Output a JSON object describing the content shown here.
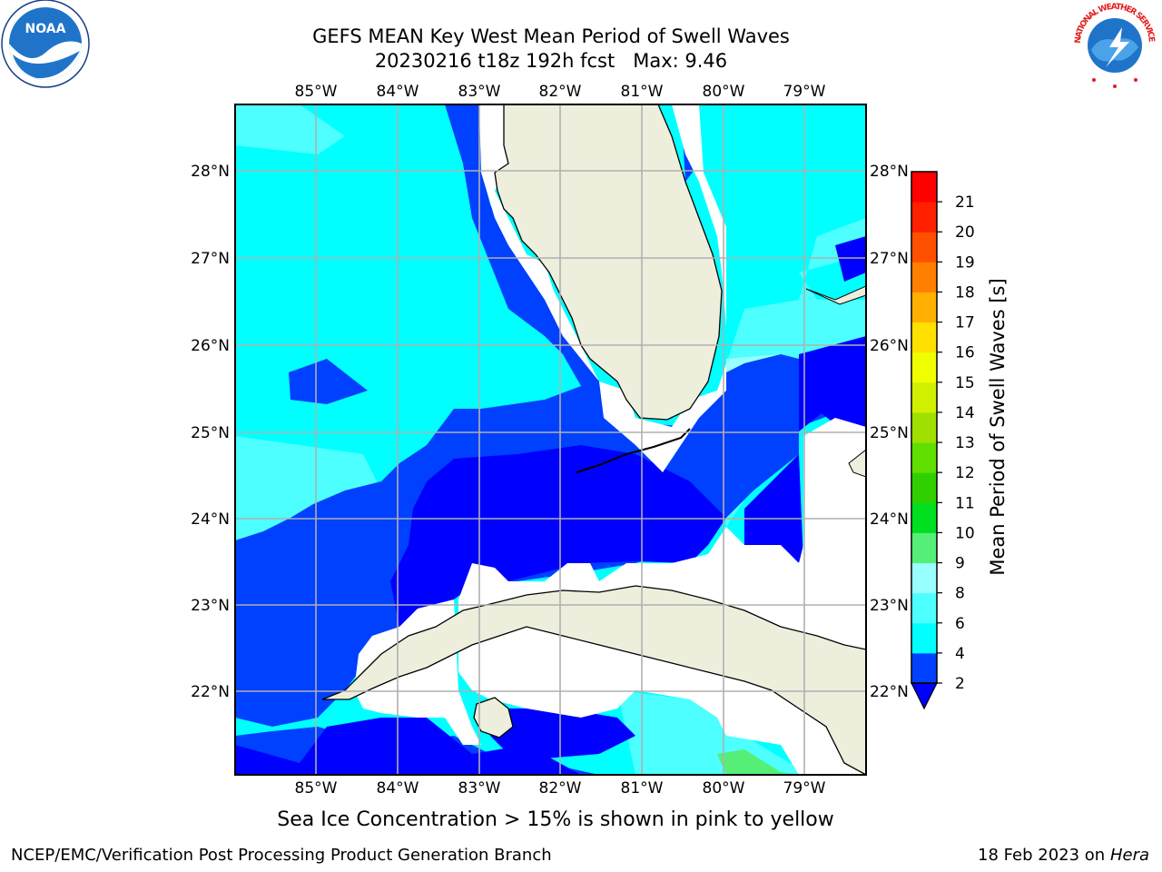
{
  "title": {
    "line1": "GEFS MEAN Key West Mean Period of Swell Waves",
    "line2": "20230216 t18z 192h fcst   Max: 9.46"
  },
  "map": {
    "lon_labels": [
      "85°W",
      "84°W",
      "83°W",
      "82°W",
      "81°W",
      "80°W",
      "79°W"
    ],
    "lat_labels": [
      "28°N",
      "27°N",
      "26°N",
      "25°N",
      "24°N",
      "23°N",
      "22°N"
    ],
    "colors": {
      "land": "#eeeedd",
      "c2_4": "#0040ff",
      "c4_6": "#00ffff",
      "c6_8": "#4dffff",
      "c8_9": "#99ffff",
      "c9_10": "#55ee77",
      "lt2": "#0000ff",
      "grid": "#b0b0b0"
    }
  },
  "colorbar": {
    "label": "Mean Period of Swell Waves [s]",
    "ticks": [
      "2",
      "4",
      "6",
      "8",
      "9",
      "10",
      "11",
      "12",
      "13",
      "14",
      "15",
      "16",
      "17",
      "18",
      "19",
      "20",
      "21"
    ],
    "colors": [
      "#0040ff",
      "#00ffff",
      "#4dffff",
      "#99ffff",
      "#55ee77",
      "#00e020",
      "#30d000",
      "#60e000",
      "#a0e000",
      "#d0f000",
      "#f0ff00",
      "#ffe000",
      "#ffb000",
      "#ff8000",
      "#ff5000",
      "#ff2000",
      "#ff0000"
    ],
    "under_color": "#0000ff"
  },
  "notes": {
    "sea_ice": "Sea Ice Concentration > 15% is shown in pink to yellow"
  },
  "footer": {
    "left": "NCEP/EMC/Verification Post Processing Product Generation Branch",
    "right_date": "18 Feb 2023 on",
    "right_machine": "Hera"
  },
  "logos": {
    "noaa": "NOAA",
    "nws": "NATIONAL WEATHER SERVICE"
  }
}
